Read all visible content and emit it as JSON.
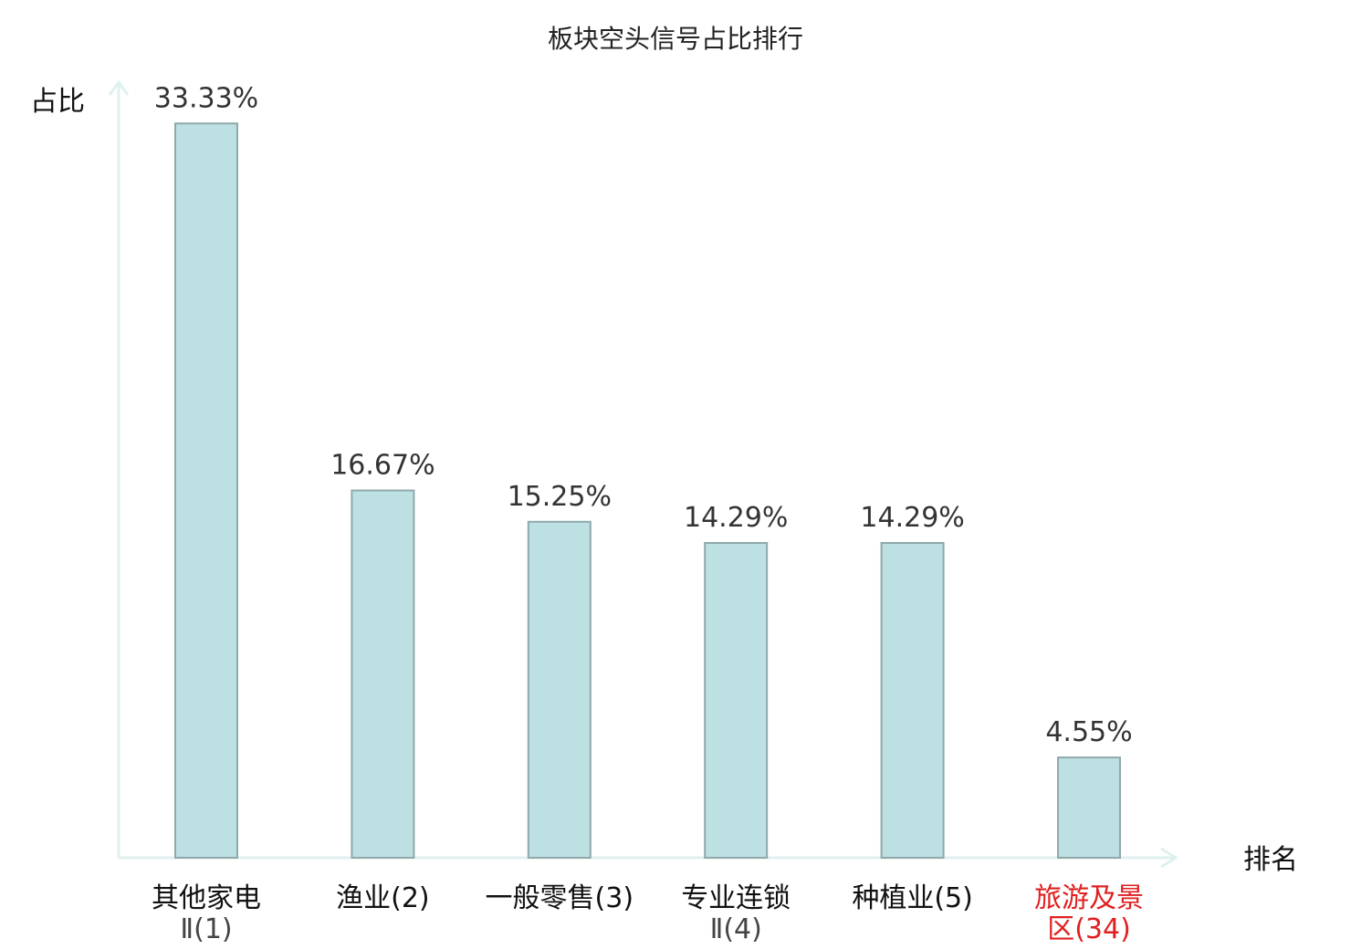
{
  "chart_data": {
    "type": "bar",
    "title": "板块空头信号占比排行",
    "ylabel": "占比",
    "xlabel": "排名",
    "categories": [
      [
        "其他家电",
        "Ⅱ(1)"
      ],
      [
        "渔业(2)"
      ],
      [
        "一般零售(3)"
      ],
      [
        "专业连锁",
        "Ⅱ(4)"
      ],
      [
        "种植业(5)"
      ],
      [
        "旅游及景",
        "区(34)"
      ]
    ],
    "values": [
      33.33,
      16.67,
      15.25,
      14.29,
      14.29,
      4.55
    ],
    "value_labels": [
      "33.33%",
      "16.67%",
      "15.25%",
      "14.29%",
      "14.29%",
      "4.55%"
    ],
    "highlight_index": 5,
    "ylim": [
      0,
      35
    ],
    "grid": false,
    "colors": {
      "bar_fill": "#bde0e3",
      "bar_stroke": "#8fa9aa",
      "axis": "#dff1ef",
      "highlight_text": "#e02020"
    }
  }
}
